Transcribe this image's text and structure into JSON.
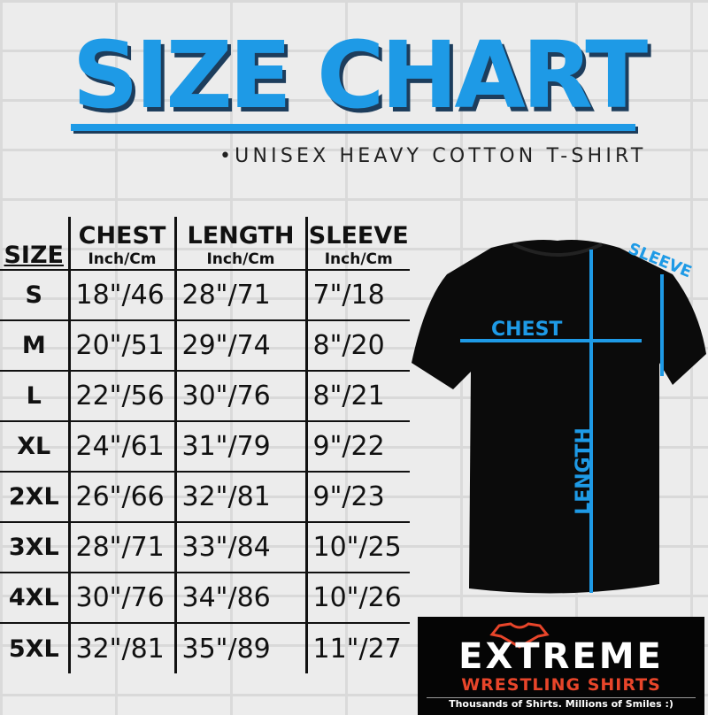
{
  "title": "SIZE CHART",
  "subtitle": "•UNISEX HEAVY COTTON T-SHIRT",
  "table": {
    "headers": [
      {
        "label": "SIZE",
        "unit": ""
      },
      {
        "label": "CHEST",
        "unit": "Inch/Cm"
      },
      {
        "label": "LENGTH",
        "unit": "Inch/Cm"
      },
      {
        "label": "SLEEVE",
        "unit": "Inch/Cm"
      }
    ],
    "rows": [
      [
        "S",
        "18\"/46",
        "28\"/71",
        "7\"/18"
      ],
      [
        "M",
        "20\"/51",
        "29\"/74",
        "8\"/20"
      ],
      [
        "L",
        "22\"/56",
        "30\"/76",
        "8\"/21"
      ],
      [
        "XL",
        "24\"/61",
        "31\"/79",
        "9\"/22"
      ],
      [
        "2XL",
        "26\"/66",
        "32\"/81",
        "9\"/23"
      ],
      [
        "3XL",
        "28\"/71",
        "33\"/84",
        "10\"/25"
      ],
      [
        "4XL",
        "30\"/76",
        "34\"/86",
        "10\"/26"
      ],
      [
        "5XL",
        "32\"/81",
        "35\"/89",
        "11\"/27"
      ]
    ]
  },
  "diagram": {
    "chest": "CHEST",
    "length": "LENGTH",
    "sleeve": "SLEEVE"
  },
  "logo": {
    "brand": "EXTREME",
    "line2": "WRESTLING SHIRTS",
    "tagline": "Thousands of Shirts. Millions of Smiles :)"
  },
  "colors": {
    "accent": "#1e9ae6",
    "logo_red": "#e8452a"
  }
}
